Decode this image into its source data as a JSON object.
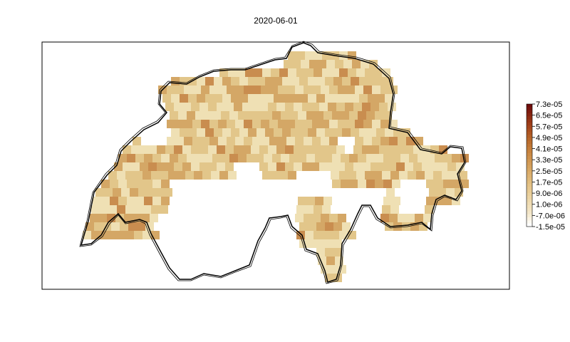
{
  "title": "2020-06-01",
  "legend": {
    "labels": [
      "7.3e-05",
      "6.5e-05",
      "5.7e-05",
      "4.9e-05",
      "4.1e-05",
      "3.3e-05",
      "2.5e-05",
      "1.7e-05",
      "9.0e-06",
      "1.0e-06",
      "-7.0e-06",
      "-1.5e-05"
    ],
    "colors": [
      "#6e0c0c",
      "#8c2a12",
      "#a5461c",
      "#b56428",
      "#c47e3a",
      "#cf9550",
      "#d9a966",
      "#e1bc7e",
      "#e9cd97",
      "#efdcb2",
      "#f4e8cc",
      "#ffffff"
    ]
  },
  "colors": {
    "cell_light": "#efe0b4",
    "cell_mid": "#e2c68a",
    "cell_dark": "#d4a766",
    "cell_darker": "#c98d4f",
    "border": "#000000"
  }
}
